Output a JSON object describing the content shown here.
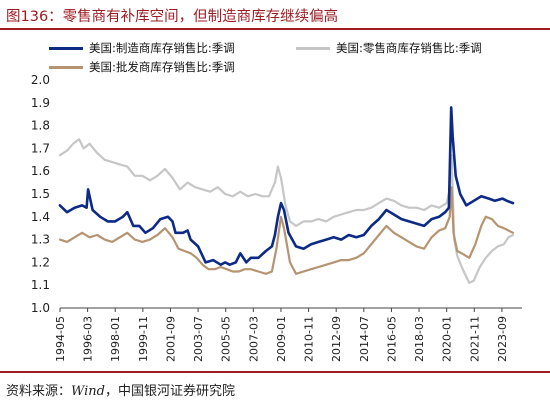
{
  "header": {
    "title": "图136：零售商有补库空间，但制造商库存继续偏高"
  },
  "footer": {
    "source_label": "资料来源：",
    "source_en": "Wind",
    "source_rest": "，中国银河证券研究院"
  },
  "colors": {
    "manufacturing": "#0d2a86",
    "retail": "#c6c6c6",
    "wholesale": "#b59471",
    "accent": "#9c1c22"
  },
  "chart_data": {
    "type": "line",
    "title": "",
    "xlabel": "",
    "ylabel": "",
    "ylim": [
      1.0,
      2.0
    ],
    "yticks": [
      "1.0",
      "1.1",
      "1.2",
      "1.3",
      "1.4",
      "1.5",
      "1.6",
      "1.7",
      "1.8",
      "1.9",
      "2.0"
    ],
    "xticks": [
      "1994-05",
      "1996-03",
      "1998-01",
      "1999-11",
      "2001-09",
      "2003-07",
      "2005-05",
      "2007-03",
      "2009-01",
      "2010-11",
      "2012-09",
      "2014-07",
      "2016-05",
      "2018-03",
      "2020-01",
      "2021-11",
      "2023-09"
    ],
    "grid": false,
    "legend_position": "top",
    "series": [
      {
        "name": "美国:制造商库存销售比:季调",
        "color": "#0d2a86",
        "points": [
          [
            1994.33,
            1.45
          ],
          [
            1994.8,
            1.42
          ],
          [
            1995.3,
            1.44
          ],
          [
            1995.8,
            1.45
          ],
          [
            1996.1,
            1.44
          ],
          [
            1996.2,
            1.52
          ],
          [
            1996.5,
            1.43
          ],
          [
            1997.0,
            1.4
          ],
          [
            1997.5,
            1.38
          ],
          [
            1998.0,
            1.38
          ],
          [
            1998.5,
            1.4
          ],
          [
            1998.8,
            1.42
          ],
          [
            1999.2,
            1.36
          ],
          [
            1999.6,
            1.36
          ],
          [
            2000.0,
            1.33
          ],
          [
            2000.5,
            1.35
          ],
          [
            2001.0,
            1.39
          ],
          [
            2001.5,
            1.4
          ],
          [
            2001.8,
            1.38
          ],
          [
            2002.0,
            1.33
          ],
          [
            2002.5,
            1.33
          ],
          [
            2002.8,
            1.34
          ],
          [
            2003.0,
            1.3
          ],
          [
            2003.5,
            1.27
          ],
          [
            2004.0,
            1.2
          ],
          [
            2004.5,
            1.21
          ],
          [
            2005.0,
            1.19
          ],
          [
            2005.3,
            1.2
          ],
          [
            2005.6,
            1.19
          ],
          [
            2006.0,
            1.2
          ],
          [
            2006.3,
            1.24
          ],
          [
            2006.7,
            1.2
          ],
          [
            2007.0,
            1.22
          ],
          [
            2007.5,
            1.22
          ],
          [
            2008.0,
            1.25
          ],
          [
            2008.4,
            1.27
          ],
          [
            2008.6,
            1.32
          ],
          [
            2008.8,
            1.4
          ],
          [
            2009.0,
            1.46
          ],
          [
            2009.2,
            1.43
          ],
          [
            2009.5,
            1.33
          ],
          [
            2010.0,
            1.27
          ],
          [
            2010.5,
            1.26
          ],
          [
            2011.0,
            1.28
          ],
          [
            2011.5,
            1.29
          ],
          [
            2012.0,
            1.3
          ],
          [
            2012.5,
            1.31
          ],
          [
            2013.0,
            1.3
          ],
          [
            2013.5,
            1.32
          ],
          [
            2014.0,
            1.31
          ],
          [
            2014.5,
            1.32
          ],
          [
            2015.0,
            1.36
          ],
          [
            2015.5,
            1.39
          ],
          [
            2016.0,
            1.43
          ],
          [
            2016.5,
            1.41
          ],
          [
            2017.0,
            1.39
          ],
          [
            2017.5,
            1.38
          ],
          [
            2018.0,
            1.37
          ],
          [
            2018.5,
            1.36
          ],
          [
            2019.0,
            1.39
          ],
          [
            2019.5,
            1.4
          ],
          [
            2019.9,
            1.42
          ],
          [
            2020.15,
            1.44
          ],
          [
            2020.3,
            1.88
          ],
          [
            2020.4,
            1.75
          ],
          [
            2020.6,
            1.58
          ],
          [
            2020.9,
            1.5
          ],
          [
            2021.3,
            1.45
          ],
          [
            2021.8,
            1.47
          ],
          [
            2022.3,
            1.49
          ],
          [
            2022.8,
            1.48
          ],
          [
            2023.2,
            1.47
          ],
          [
            2023.7,
            1.48
          ],
          [
            2024.0,
            1.47
          ],
          [
            2024.4,
            1.46
          ]
        ]
      },
      {
        "name": "美国:零售商库存销售比:季调",
        "color": "#c6c6c6",
        "points": [
          [
            1994.33,
            1.67
          ],
          [
            1994.8,
            1.69
          ],
          [
            1995.2,
            1.72
          ],
          [
            1995.6,
            1.74
          ],
          [
            1995.9,
            1.7
          ],
          [
            1996.3,
            1.72
          ],
          [
            1996.8,
            1.68
          ],
          [
            1997.3,
            1.65
          ],
          [
            1997.8,
            1.64
          ],
          [
            1998.3,
            1.63
          ],
          [
            1998.8,
            1.62
          ],
          [
            1999.3,
            1.58
          ],
          [
            1999.8,
            1.58
          ],
          [
            2000.3,
            1.56
          ],
          [
            2000.8,
            1.58
          ],
          [
            2001.3,
            1.61
          ],
          [
            2001.8,
            1.57
          ],
          [
            2002.3,
            1.52
          ],
          [
            2002.8,
            1.55
          ],
          [
            2003.3,
            1.53
          ],
          [
            2003.8,
            1.52
          ],
          [
            2004.3,
            1.51
          ],
          [
            2004.8,
            1.53
          ],
          [
            2005.3,
            1.5
          ],
          [
            2005.8,
            1.49
          ],
          [
            2006.3,
            1.51
          ],
          [
            2006.8,
            1.49
          ],
          [
            2007.3,
            1.5
          ],
          [
            2007.8,
            1.49
          ],
          [
            2008.2,
            1.49
          ],
          [
            2008.6,
            1.55
          ],
          [
            2008.8,
            1.62
          ],
          [
            2009.0,
            1.57
          ],
          [
            2009.3,
            1.45
          ],
          [
            2009.6,
            1.38
          ],
          [
            2010.0,
            1.36
          ],
          [
            2010.5,
            1.38
          ],
          [
            2011.0,
            1.38
          ],
          [
            2011.5,
            1.39
          ],
          [
            2012.0,
            1.38
          ],
          [
            2012.5,
            1.4
          ],
          [
            2013.0,
            1.41
          ],
          [
            2013.5,
            1.42
          ],
          [
            2014.0,
            1.43
          ],
          [
            2014.5,
            1.43
          ],
          [
            2015.0,
            1.44
          ],
          [
            2015.5,
            1.46
          ],
          [
            2016.0,
            1.48
          ],
          [
            2016.5,
            1.47
          ],
          [
            2017.0,
            1.45
          ],
          [
            2017.5,
            1.44
          ],
          [
            2018.0,
            1.44
          ],
          [
            2018.5,
            1.43
          ],
          [
            2019.0,
            1.45
          ],
          [
            2019.5,
            1.44
          ],
          [
            2020.0,
            1.46
          ],
          [
            2020.2,
            1.52
          ],
          [
            2020.33,
            1.67
          ],
          [
            2020.5,
            1.3
          ],
          [
            2020.7,
            1.23
          ],
          [
            2021.0,
            1.18
          ],
          [
            2021.2,
            1.15
          ],
          [
            2021.5,
            1.11
          ],
          [
            2021.8,
            1.12
          ],
          [
            2022.2,
            1.18
          ],
          [
            2022.6,
            1.22
          ],
          [
            2023.0,
            1.25
          ],
          [
            2023.4,
            1.27
          ],
          [
            2023.8,
            1.28
          ],
          [
            2024.1,
            1.31
          ],
          [
            2024.4,
            1.32
          ]
        ]
      },
      {
        "name": "美国:批发商库存销售比:季调",
        "color": "#b59471",
        "points": [
          [
            1994.33,
            1.3
          ],
          [
            1994.8,
            1.29
          ],
          [
            1995.3,
            1.31
          ],
          [
            1995.8,
            1.33
          ],
          [
            1996.3,
            1.31
          ],
          [
            1996.8,
            1.32
          ],
          [
            1997.3,
            1.3
          ],
          [
            1997.8,
            1.29
          ],
          [
            1998.3,
            1.31
          ],
          [
            1998.8,
            1.33
          ],
          [
            1999.3,
            1.3
          ],
          [
            1999.8,
            1.29
          ],
          [
            2000.3,
            1.3
          ],
          [
            2000.8,
            1.32
          ],
          [
            2001.3,
            1.35
          ],
          [
            2001.8,
            1.31
          ],
          [
            2002.2,
            1.26
          ],
          [
            2002.6,
            1.25
          ],
          [
            2003.0,
            1.24
          ],
          [
            2003.4,
            1.22
          ],
          [
            2003.8,
            1.19
          ],
          [
            2004.2,
            1.17
          ],
          [
            2004.6,
            1.17
          ],
          [
            2005.0,
            1.18
          ],
          [
            2005.4,
            1.17
          ],
          [
            2005.8,
            1.16
          ],
          [
            2006.2,
            1.16
          ],
          [
            2006.6,
            1.17
          ],
          [
            2007.0,
            1.17
          ],
          [
            2007.5,
            1.16
          ],
          [
            2008.0,
            1.15
          ],
          [
            2008.4,
            1.16
          ],
          [
            2008.7,
            1.26
          ],
          [
            2009.0,
            1.4
          ],
          [
            2009.2,
            1.35
          ],
          [
            2009.6,
            1.2
          ],
          [
            2010.0,
            1.15
          ],
          [
            2010.5,
            1.16
          ],
          [
            2011.0,
            1.17
          ],
          [
            2011.5,
            1.18
          ],
          [
            2012.0,
            1.19
          ],
          [
            2012.5,
            1.2
          ],
          [
            2013.0,
            1.21
          ],
          [
            2013.5,
            1.21
          ],
          [
            2014.0,
            1.22
          ],
          [
            2014.5,
            1.24
          ],
          [
            2015.0,
            1.28
          ],
          [
            2015.5,
            1.32
          ],
          [
            2016.0,
            1.36
          ],
          [
            2016.5,
            1.33
          ],
          [
            2017.0,
            1.31
          ],
          [
            2017.5,
            1.29
          ],
          [
            2018.0,
            1.27
          ],
          [
            2018.5,
            1.26
          ],
          [
            2019.0,
            1.31
          ],
          [
            2019.5,
            1.34
          ],
          [
            2019.9,
            1.35
          ],
          [
            2020.2,
            1.4
          ],
          [
            2020.33,
            1.53
          ],
          [
            2020.45,
            1.33
          ],
          [
            2020.7,
            1.25
          ],
          [
            2021.0,
            1.24
          ],
          [
            2021.5,
            1.22
          ],
          [
            2021.9,
            1.28
          ],
          [
            2022.3,
            1.36
          ],
          [
            2022.6,
            1.4
          ],
          [
            2023.0,
            1.39
          ],
          [
            2023.4,
            1.36
          ],
          [
            2023.8,
            1.35
          ],
          [
            2024.1,
            1.34
          ],
          [
            2024.4,
            1.33
          ]
        ]
      }
    ]
  }
}
